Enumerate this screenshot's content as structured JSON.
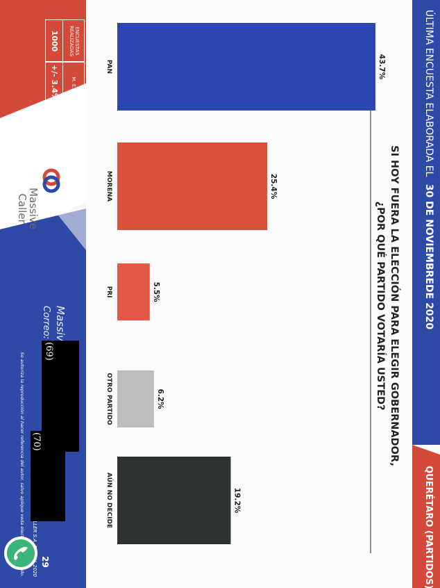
{
  "header": {
    "left_text": "ÚLTIMA ENCUESTA ELABORADA EL",
    "date": "30 DE NOVIEMBREDE 2020",
    "right_text": "QUERÉTARO (PARTIDOS)"
  },
  "question": {
    "line1": "SI HOY FUERA LA ELECCIÓN PARA ELEGIR GOBERNADOR,",
    "line2": "¿POR QUÉ PARTIDO VOTARÍA USTED?"
  },
  "chart_data": {
    "type": "bar",
    "title": "SI HOY FUERA LA ELECCIÓN PARA ELEGIR GOBERNADOR, ¿POR QUÉ PARTIDO VOTARÍA USTED?",
    "categories": [
      "PAN",
      "MORENA",
      "PRI",
      "OTRO PARTIDO",
      "AÚN NO DECIDE"
    ],
    "values": [
      43.7,
      25.4,
      5.5,
      6.2,
      19.2
    ],
    "value_labels": [
      "43.7%",
      "25.4%",
      "5.5%",
      "6.2%",
      "19.2%"
    ],
    "colors": [
      "#2c47b3",
      "#d9503c",
      "#e45848",
      "#bdbdbd",
      "#2f3330"
    ],
    "ylim": [
      0,
      43.7
    ],
    "grid": false,
    "legend": "none"
  },
  "stats": {
    "encuestas_title": "ENCUESTAS REALIZADAS",
    "encuestas_value": "1000",
    "me_title": "M. E.",
    "me_value": "+/- 3.4%"
  },
  "brand": {
    "name_line1": "Massive",
    "name_line2": "Caller"
  },
  "footer": {
    "whatsapp": "Massive Caller Whatsapp:",
    "correo": "Correo:",
    "copyright": "D.R. (C) MASSIVE CALLER S.A. DE C.V. 2020",
    "authorization": "Se autoriza la reproducción al hacer referencia del autor, salvo aplique veda electoral al contenido.",
    "page_number": "29",
    "redaction_1": "(69)",
    "redaction_2": "(70)"
  },
  "colors": {
    "header_blue": "#2e49a6",
    "accent_red": "#d44a3a",
    "footer_blue": "#2f4aa6",
    "whatsapp_green": "#3bb37a"
  }
}
